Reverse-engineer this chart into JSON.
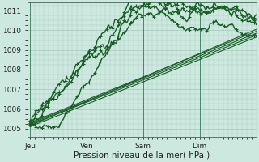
{
  "bg_color": "#cce8df",
  "grid_color": "#aaccc0",
  "line_color": "#1a5c28",
  "ylim": [
    1004.6,
    1011.4
  ],
  "ylabel_values": [
    1005,
    1006,
    1007,
    1008,
    1009,
    1010,
    1011
  ],
  "xlabel": "Pression niveau de la mer( hPa )",
  "x_tick_labels": [
    "Jeu",
    "Ven",
    "Sam",
    "Dim"
  ],
  "x_tick_positions": [
    0,
    48,
    96,
    144
  ],
  "xlim": [
    -2,
    192
  ]
}
